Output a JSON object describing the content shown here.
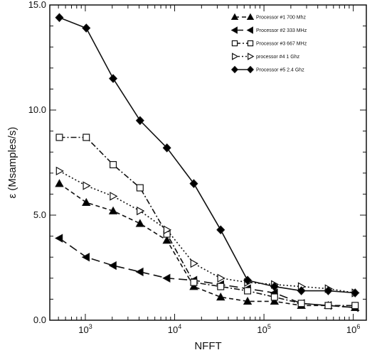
{
  "chart_data": {
    "type": "line",
    "xlabel": "NFFT",
    "ylabel": "ε (Msamples/s)",
    "x_scale": "log",
    "xlim": [
      400,
      1400000
    ],
    "ylim": [
      0,
      15
    ],
    "x_ticks": [
      {
        "value": 1000,
        "base": "10",
        "exp": "3"
      },
      {
        "value": 10000,
        "base": "10",
        "exp": "4"
      },
      {
        "value": 100000,
        "base": "10",
        "exp": "5"
      },
      {
        "value": 1000000,
        "base": "10",
        "exp": "6"
      }
    ],
    "y_ticks": [
      {
        "value": 0,
        "label": "0.0"
      },
      {
        "value": 5,
        "label": "5.0"
      },
      {
        "value": 10,
        "label": "10.0"
      },
      {
        "value": 15,
        "label": "15.0"
      }
    ],
    "legend_position": "top-right",
    "series": [
      {
        "name": "Processor #1 700 Mhz",
        "marker": "triangle-up",
        "fill": "#000000",
        "dash": "6,4",
        "x": [
          512,
          1024,
          2048,
          4096,
          8192,
          16384,
          32768,
          65536,
          131072,
          262144,
          524288,
          1048576
        ],
        "y": [
          6.5,
          5.6,
          5.2,
          4.6,
          3.8,
          1.6,
          1.1,
          0.9,
          0.9,
          0.7,
          0.7,
          0.6
        ]
      },
      {
        "name": "Processor #2 333 MHz",
        "marker": "triangle-left",
        "fill": "#000000",
        "dash": "12,6",
        "x": [
          512,
          1024,
          2048,
          4096,
          8192,
          16384,
          32768,
          65536,
          131072,
          262144,
          524288,
          1048576
        ],
        "y": [
          3.9,
          3.0,
          2.6,
          2.3,
          2.0,
          1.9,
          1.7,
          1.5,
          1.3,
          0.8,
          0.7,
          0.6
        ]
      },
      {
        "name": "Processor #3 667 MHz",
        "marker": "square",
        "fill": "#ffffff",
        "dash": "8,3,2,3",
        "x": [
          512,
          1024,
          2048,
          4096,
          8192,
          16384,
          32768,
          65536,
          131072,
          262144,
          524288,
          1048576
        ],
        "y": [
          8.7,
          8.7,
          7.4,
          6.3,
          4.1,
          1.8,
          1.6,
          1.4,
          1.1,
          0.8,
          0.7,
          0.7
        ]
      },
      {
        "name": "processor #4 1 Ghz",
        "marker": "triangle-right",
        "fill": "#ffffff",
        "dash": "2,3",
        "x": [
          512,
          1024,
          2048,
          4096,
          8192,
          16384,
          32768,
          65536,
          131072,
          262144,
          524288,
          1048576
        ],
        "y": [
          7.1,
          6.4,
          5.9,
          5.2,
          4.3,
          2.7,
          2.0,
          1.8,
          1.7,
          1.6,
          1.5,
          1.3
        ]
      },
      {
        "name": "Processor #5 2.4 Ghz",
        "marker": "diamond",
        "fill": "#000000",
        "dash": "",
        "x": [
          512,
          1024,
          2048,
          4096,
          8192,
          16384,
          32768,
          65536,
          131072,
          262144,
          524288,
          1048576
        ],
        "y": [
          14.4,
          13.9,
          11.5,
          9.5,
          8.2,
          6.5,
          4.3,
          1.9,
          1.6,
          1.4,
          1.4,
          1.3
        ]
      }
    ]
  }
}
